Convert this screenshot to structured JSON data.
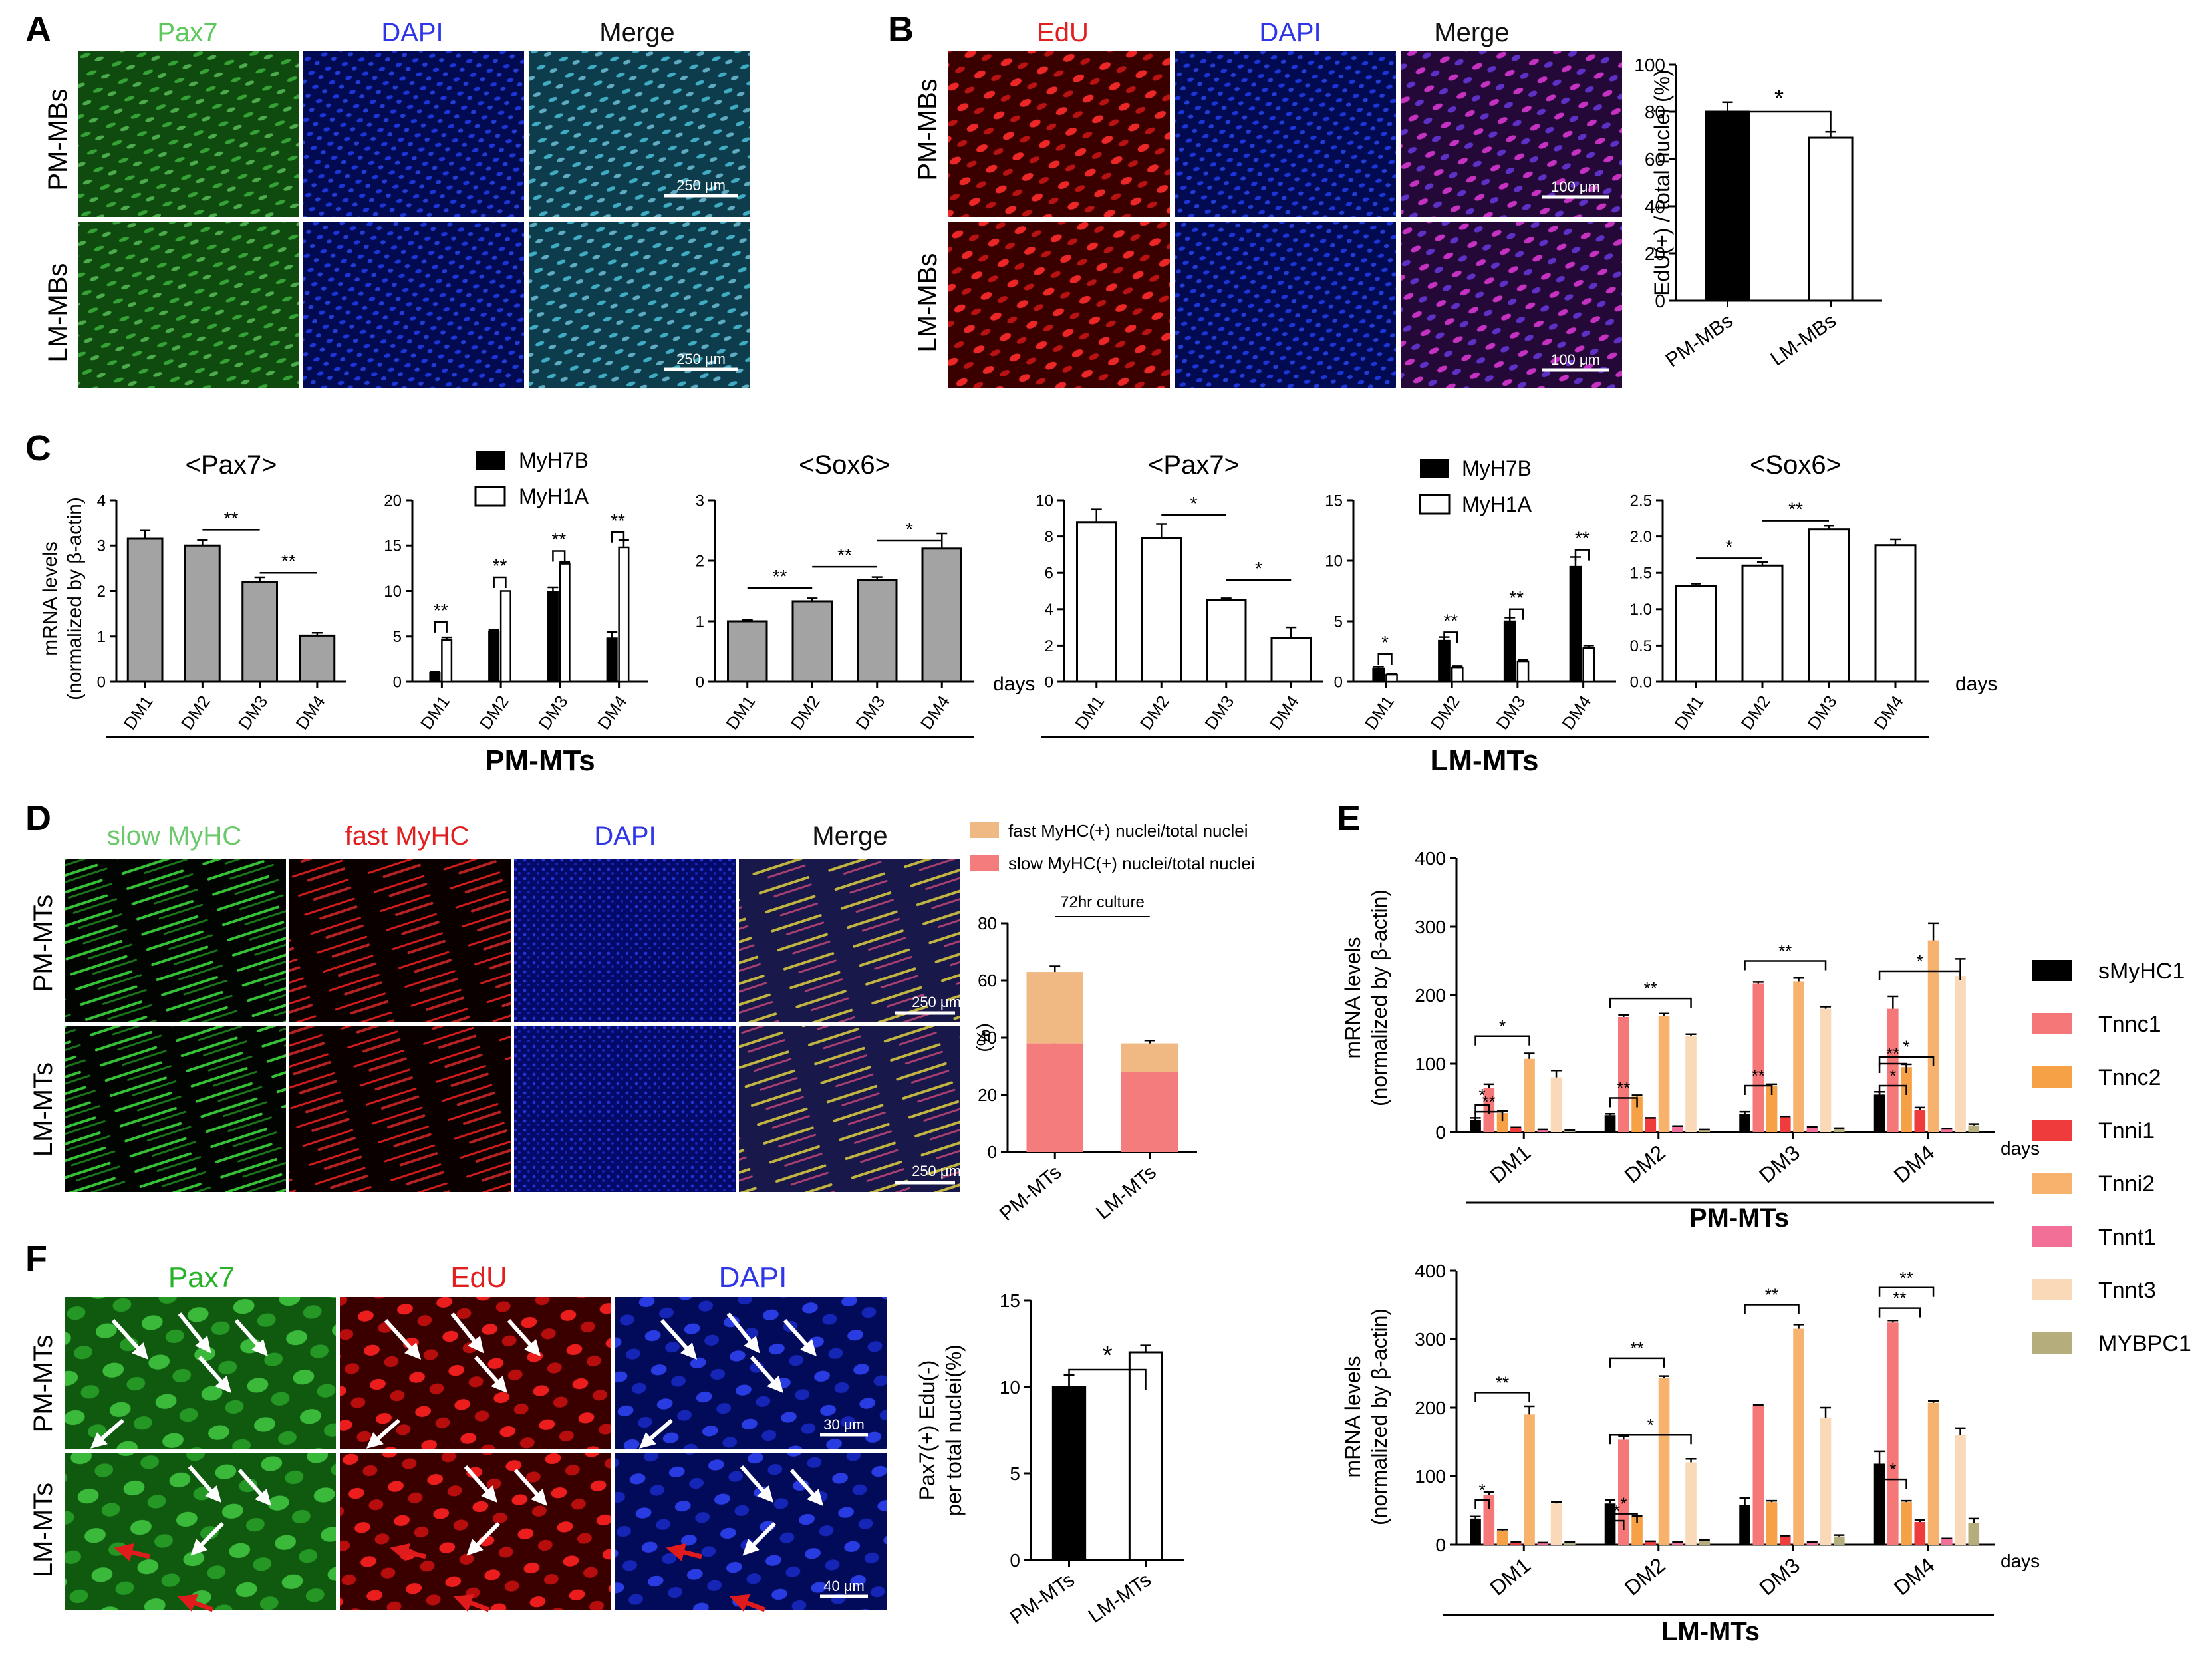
{
  "figure": {
    "panel_letters": [
      "A",
      "B",
      "C",
      "D",
      "E",
      "F"
    ],
    "panelA": {
      "channels": [
        "Pax7",
        "DAPI",
        "Merge"
      ],
      "channel_colors": [
        "#5cc85c",
        "#2f36e6",
        "#111111"
      ],
      "rows": [
        "PM-MBs",
        "LM-MBs"
      ],
      "scale_bar": "250 μm"
    },
    "panelB": {
      "channels": [
        "EdU",
        "DAPI",
        "Merge"
      ],
      "channel_colors": [
        "#e02020",
        "#2f36e6",
        "#111111"
      ],
      "rows": [
        "PM-MBs",
        "LM-MBs"
      ],
      "scale_bar": "100 μm"
    },
    "panelC": {
      "group_labels": [
        "PM-MTs",
        "LM-MTs"
      ],
      "days_label": "days",
      "ylabel_line1": "mRNA levels",
      "ylabel_line2": "(normalized by β-actin)",
      "legend": [
        "MyH7B",
        "MyH1A"
      ]
    },
    "panelD": {
      "channels": [
        "slow MyHC",
        "fast MyHC",
        "DAPI",
        "Merge"
      ],
      "channel_colors": [
        "#6cc86c",
        "#e02020",
        "#2f36e6",
        "#111111"
      ],
      "rows": [
        "PM-MTs",
        "LM-MTs"
      ],
      "scale_bar": "250 μm",
      "legend": [
        "fast MyHC(+) nuclei/total nuclei",
        "slow MyHC(+) nuclei/total nuclei"
      ],
      "legend_colors": [
        "#f0b882",
        "#f47c7c"
      ]
    },
    "panelE": {
      "legend": [
        "sMyHC1",
        "Tnnc1",
        "Tnnc2",
        "Tnni1",
        "Tnni2",
        "Tnnt1",
        "Tnnt3",
        "MYBPC1"
      ],
      "colors": [
        "#000000",
        "#f57777",
        "#f7a147",
        "#ef3b3b",
        "#f7b26e",
        "#f27097",
        "#f9d9b8",
        "#b5ad7c"
      ],
      "ylabel_line1": "mRNA levels",
      "ylabel_line2": "(normalized by β-actin)",
      "days_label": "days",
      "group_labels": [
        "PM-MTs",
        "LM-MTs"
      ]
    },
    "panelF": {
      "channels": [
        "Pax7",
        "EdU",
        "DAPI"
      ],
      "channel_colors": [
        "#27b227",
        "#e02020",
        "#2f36e6"
      ],
      "rows": [
        "PM-MTs",
        "LM-MTs"
      ],
      "scale_bars": [
        "30 μm",
        "40 μm"
      ]
    }
  },
  "chart_data": [
    {
      "id": "B-bar",
      "type": "bar",
      "title": "",
      "categories": [
        "PM-MBs",
        "LM-MBs"
      ],
      "values": [
        80,
        69
      ],
      "ylabel": "EdU(+) / total nuclei (%)",
      "ylim": [
        0,
        100
      ],
      "yticks": [
        "0",
        "20",
        "40",
        "60",
        "80",
        "100"
      ],
      "significance": "*"
    },
    {
      "id": "C1",
      "type": "bar",
      "title": "<Pax7>",
      "categories": [
        "DM1",
        "DM2",
        "DM3",
        "DM4"
      ],
      "values": [
        3.15,
        3.0,
        2.2,
        1.02
      ],
      "ylim": [
        0,
        4
      ],
      "yticks": [
        "0",
        "1",
        "2",
        "3",
        "4"
      ],
      "significance": [
        "**",
        "**"
      ]
    },
    {
      "id": "C2",
      "type": "bar",
      "title": "",
      "categories": [
        "DM1",
        "DM2",
        "DM3",
        "DM4"
      ],
      "series": [
        {
          "name": "MyH7B",
          "values": [
            1.0,
            5.5,
            9.9,
            4.8
          ]
        },
        {
          "name": "MyH1A",
          "values": [
            4.6,
            10.0,
            13.0,
            14.8
          ]
        }
      ],
      "ylim": [
        0,
        20
      ],
      "yticks": [
        "0",
        "5",
        "10",
        "15",
        "20"
      ],
      "significance": [
        "**",
        "**",
        "**",
        "**"
      ]
    },
    {
      "id": "C3",
      "type": "bar",
      "title": "<Sox6>",
      "categories": [
        "DM1",
        "DM2",
        "DM3",
        "DM4"
      ],
      "values": [
        1.0,
        1.33,
        1.68,
        2.2
      ],
      "ylim": [
        0,
        3
      ],
      "yticks": [
        "0",
        "1",
        "2",
        "3"
      ],
      "significance": [
        "**",
        "**",
        "*"
      ]
    },
    {
      "id": "C4",
      "type": "bar",
      "title": "<Pax7>",
      "categories": [
        "DM1",
        "DM2",
        "DM3",
        "DM4"
      ],
      "values": [
        8.8,
        7.9,
        4.5,
        2.4
      ],
      "ylim": [
        0,
        10
      ],
      "yticks": [
        "0",
        "2",
        "4",
        "6",
        "8",
        "10"
      ],
      "significance": [
        "*",
        "*"
      ]
    },
    {
      "id": "C5",
      "type": "bar",
      "title": "",
      "categories": [
        "DM1",
        "DM2",
        "DM3",
        "DM4"
      ],
      "series": [
        {
          "name": "MyH7B",
          "values": [
            1.1,
            3.4,
            5.0,
            9.5
          ]
        },
        {
          "name": "MyH1A",
          "values": [
            0.6,
            1.2,
            1.7,
            2.8
          ]
        }
      ],
      "ylim": [
        0,
        15
      ],
      "yticks": [
        "0",
        "5",
        "10",
        "15"
      ],
      "significance": [
        "*",
        "**",
        "**",
        "**"
      ]
    },
    {
      "id": "C6",
      "type": "bar",
      "title": "<Sox6>",
      "categories": [
        "DM1",
        "DM2",
        "DM3",
        "DM4"
      ],
      "values": [
        1.32,
        1.6,
        2.1,
        1.88
      ],
      "ylim": [
        0,
        2.5
      ],
      "yticks": [
        "0.0",
        "0.5",
        "1.0",
        "1.5",
        "2.0",
        "2.5"
      ],
      "significance": [
        "*",
        "**"
      ]
    },
    {
      "id": "D-bar",
      "type": "bar",
      "title": "72hr culture",
      "categories": [
        "PM-MTs",
        "LM-MTs"
      ],
      "series": [
        {
          "name": "slow MyHC(+) nuclei/total nuclei",
          "values": [
            38,
            28
          ]
        },
        {
          "name": "fast MyHC(+) nuclei/total nuclei",
          "values": [
            25,
            10
          ]
        }
      ],
      "ylabel": "(%)",
      "ylim": [
        0,
        80
      ],
      "yticks": [
        "0",
        "20",
        "40",
        "60",
        "80"
      ]
    },
    {
      "id": "E-PM",
      "type": "bar",
      "title": "",
      "categories": [
        "DM1",
        "DM2",
        "DM3",
        "DM4"
      ],
      "series": [
        {
          "name": "sMyHC1",
          "values": [
            18,
            25,
            27,
            55
          ]
        },
        {
          "name": "Tnnc1",
          "values": [
            65,
            168,
            217,
            180
          ]
        },
        {
          "name": "Tnnc2",
          "values": [
            28,
            52,
            67,
            95
          ]
        },
        {
          "name": "Tnni1",
          "values": [
            6,
            20,
            22,
            33
          ]
        },
        {
          "name": "Tnni2",
          "values": [
            107,
            170,
            220,
            280
          ]
        },
        {
          "name": "Tnnt1",
          "values": [
            3,
            8,
            7,
            4
          ]
        },
        {
          "name": "Tnnt3",
          "values": [
            80,
            140,
            180,
            228
          ]
        },
        {
          "name": "MYBPC1",
          "values": [
            2,
            3,
            5,
            10
          ]
        }
      ],
      "ylim": [
        0,
        400
      ],
      "yticks": [
        "0",
        "100",
        "200",
        "300",
        "400"
      ],
      "group": "PM-MTs"
    },
    {
      "id": "E-LM",
      "type": "bar",
      "title": "",
      "categories": [
        "DM1",
        "DM2",
        "DM3",
        "DM4"
      ],
      "series": [
        {
          "name": "sMyHC1",
          "values": [
            38,
            60,
            58,
            118
          ]
        },
        {
          "name": "Tnnc1",
          "values": [
            72,
            153,
            202,
            324
          ]
        },
        {
          "name": "Tnnc2",
          "values": [
            20,
            40,
            62,
            62
          ]
        },
        {
          "name": "Tnni1",
          "values": [
            3,
            4,
            12,
            33
          ]
        },
        {
          "name": "Tnni2",
          "values": [
            190,
            243,
            315,
            207
          ]
        },
        {
          "name": "Tnnt1",
          "values": [
            2,
            3,
            3,
            8
          ]
        },
        {
          "name": "Tnnt3",
          "values": [
            60,
            120,
            185,
            160
          ]
        },
        {
          "name": "MYBPC1",
          "values": [
            3,
            6,
            12,
            32
          ]
        }
      ],
      "ylim": [
        0,
        400
      ],
      "yticks": [
        "0",
        "100",
        "200",
        "300",
        "400"
      ],
      "group": "LM-MTs"
    },
    {
      "id": "F-bar",
      "type": "bar",
      "title": "",
      "categories": [
        "PM-MTs",
        "LM-MTs"
      ],
      "values": [
        10.0,
        12.0
      ],
      "ylabel_line1": "Pax7(+) Edu(-)",
      "ylabel_line2": "per total nuclei(%)",
      "ylim": [
        0,
        15
      ],
      "yticks": [
        "0",
        "5",
        "10",
        "15"
      ],
      "significance": "*"
    }
  ]
}
